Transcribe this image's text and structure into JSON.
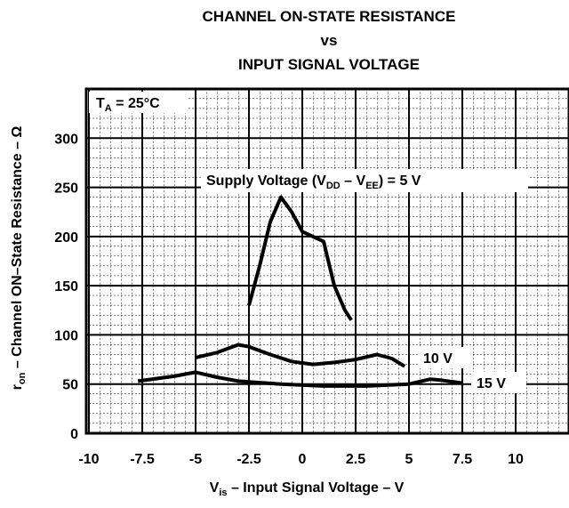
{
  "chart_data": {
    "type": "line",
    "title": [
      "CHANNEL ON-STATE RESISTANCE",
      "vs",
      "INPUT SIGNAL VOLTAGE"
    ],
    "x_label": [
      "V",
      "is",
      " – Input Signal Voltage – V"
    ],
    "y_label": [
      "r",
      "on",
      " – Channel ON–State Resistance – Ω"
    ],
    "annotations": {
      "temperature": [
        "T",
        "A",
        " = 25°C"
      ],
      "supply": [
        "Supply Voltage (V",
        "DD",
        " – V",
        "EE",
        ") = 5 V"
      ]
    },
    "xlim": [
      -10,
      12.5
    ],
    "ylim": [
      0,
      350
    ],
    "xticks": [
      -10,
      -7.5,
      -5,
      -2.5,
      0,
      2.5,
      5,
      7.5,
      10
    ],
    "yticks": [
      0,
      50,
      100,
      150,
      200,
      250,
      300
    ],
    "grid": true,
    "series": [
      {
        "color": "#000000",
        "x": [
          -2.5,
          -2,
          -1.5,
          -1,
          -0.5,
          0,
          0.5,
          1,
          1.5,
          2,
          2.3
        ],
        "values": [
          130,
          170,
          215,
          240,
          225,
          205,
          200,
          195,
          150,
          125,
          115
        ]
      },
      {
        "name": "10 V",
        "color": "#000000",
        "x": [
          -5,
          -4,
          -3,
          -2.5,
          -1.5,
          -0.5,
          0.5,
          1.5,
          2.5,
          3.5,
          4.2,
          4.8
        ],
        "values": [
          77,
          82,
          90,
          88,
          80,
          73,
          70,
          72,
          75,
          80,
          76,
          68
        ]
      },
      {
        "name": "15 V",
        "color": "#000000",
        "x": [
          -7.7,
          -6,
          -5,
          -4,
          -3,
          -1,
          1,
          3,
          5,
          6,
          6.5,
          7.5
        ],
        "values": [
          53,
          58,
          62,
          57,
          53,
          50,
          48,
          48,
          50,
          55,
          54,
          51
        ]
      }
    ]
  }
}
